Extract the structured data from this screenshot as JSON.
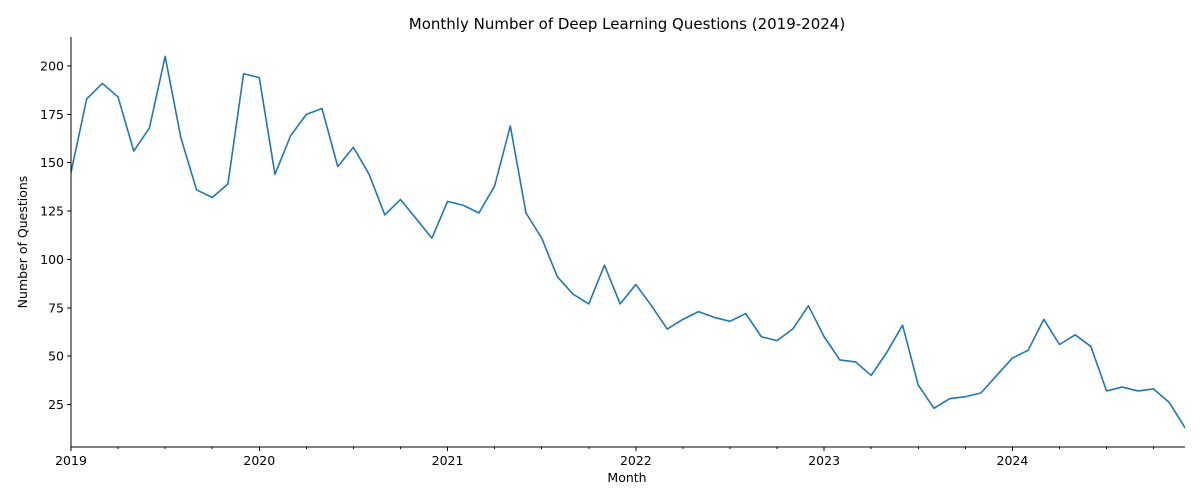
{
  "chart_data": {
    "type": "line",
    "title": "Monthly Number of Deep Learning Questions (2019-2024)",
    "xlabel": "Month",
    "ylabel": "Number of Questions",
    "x_start": "2019-01",
    "x_end": "2024-12",
    "x_tick_labels": [
      "2019",
      "2020",
      "2021",
      "2022",
      "2023",
      "2024"
    ],
    "y_ticks": [
      25,
      50,
      75,
      100,
      125,
      150,
      175,
      200
    ],
    "ylim": [
      3,
      215
    ],
    "grid": false,
    "legend": "none",
    "series": [
      {
        "color": "#1f77b4",
        "x": [
          "2019-01",
          "2019-02",
          "2019-03",
          "2019-04",
          "2019-05",
          "2019-06",
          "2019-07",
          "2019-08",
          "2019-09",
          "2019-10",
          "2019-11",
          "2019-12",
          "2020-01",
          "2020-02",
          "2020-03",
          "2020-04",
          "2020-05",
          "2020-06",
          "2020-07",
          "2020-08",
          "2020-09",
          "2020-10",
          "2020-11",
          "2020-12",
          "2021-01",
          "2021-02",
          "2021-03",
          "2021-04",
          "2021-05",
          "2021-06",
          "2021-07",
          "2021-08",
          "2021-09",
          "2021-10",
          "2021-11",
          "2021-12",
          "2022-01",
          "2022-02",
          "2022-03",
          "2022-04",
          "2022-05",
          "2022-06",
          "2022-07",
          "2022-08",
          "2022-09",
          "2022-10",
          "2022-11",
          "2022-12",
          "2023-01",
          "2023-02",
          "2023-03",
          "2023-04",
          "2023-05",
          "2023-06",
          "2023-07",
          "2023-08",
          "2023-09",
          "2023-10",
          "2023-11",
          "2023-12",
          "2024-01",
          "2024-02",
          "2024-03",
          "2024-04",
          "2024-05",
          "2024-06",
          "2024-07",
          "2024-08",
          "2024-09",
          "2024-10",
          "2024-11",
          "2024-12"
        ],
        "values": [
          145,
          183,
          191,
          184,
          156,
          168,
          205,
          163,
          136,
          132,
          139,
          196,
          194,
          144,
          164,
          175,
          178,
          148,
          158,
          144,
          123,
          131,
          121,
          111,
          130,
          128,
          124,
          138,
          169,
          124,
          111,
          91,
          82,
          77,
          97,
          77,
          87,
          76,
          64,
          69,
          73,
          70,
          68,
          72,
          60,
          58,
          64,
          76,
          60,
          48,
          47,
          40,
          52,
          66,
          35,
          23,
          28,
          29,
          31,
          40,
          49,
          53,
          69,
          56,
          61,
          55,
          32,
          34,
          32,
          33,
          26,
          13
        ]
      }
    ]
  }
}
